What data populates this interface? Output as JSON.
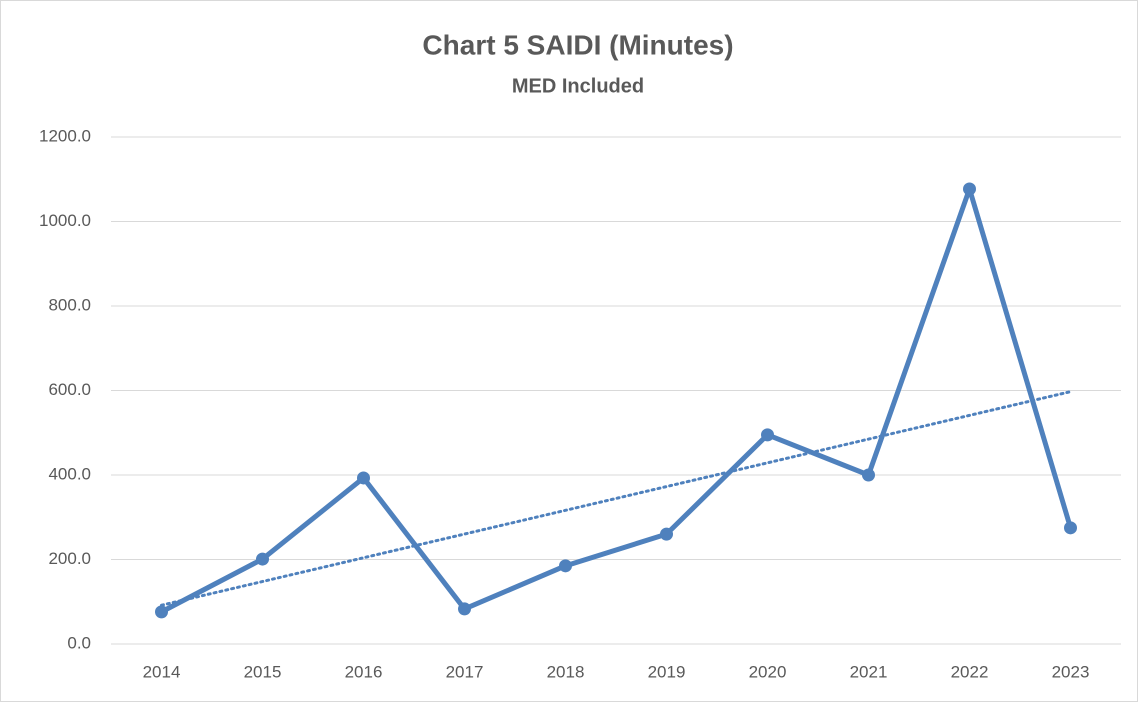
{
  "chart_data": {
    "type": "line",
    "title": "Chart 5 SAIDI (Minutes)",
    "subtitle": "MED Included",
    "categories": [
      "2014",
      "2015",
      "2016",
      "2017",
      "2018",
      "2019",
      "2020",
      "2021",
      "2022",
      "2023"
    ],
    "values": [
      76,
      201,
      393,
      83,
      185,
      260,
      495,
      400,
      1077,
      275
    ],
    "color": "#4f81bd",
    "ylim": [
      0,
      1200
    ],
    "yticks": [
      {
        "value": 0,
        "label": "0.0"
      },
      {
        "value": 200,
        "label": "200.0"
      },
      {
        "value": 400,
        "label": "400.0"
      },
      {
        "value": 600,
        "label": "600.0"
      },
      {
        "value": 800,
        "label": "800.0"
      },
      {
        "value": 1000,
        "label": "1000.0"
      },
      {
        "value": 1200,
        "label": "1200.0"
      }
    ],
    "grid": true,
    "trendline": "linear"
  }
}
